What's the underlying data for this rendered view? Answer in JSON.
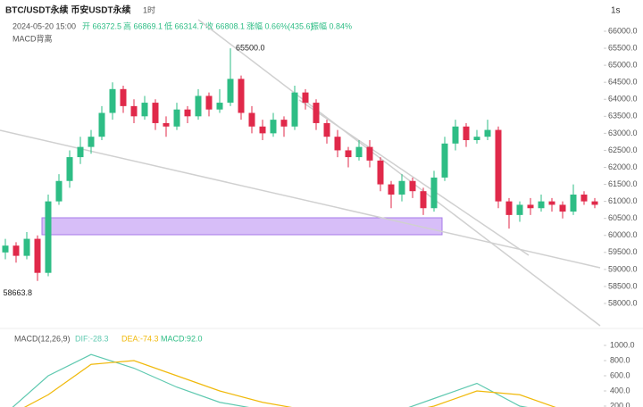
{
  "header": {
    "symbol": "BTC/USDT永续 币安USDT永续",
    "interval": "1时",
    "refresh": "1s"
  },
  "info": {
    "time": "2024-05-20 15:00",
    "open": "开 66372.5",
    "high": "高 66869.1",
    "low": "低 66314.7",
    "close": "收 66808.1",
    "change": "涨幅 0.66%(435.6)",
    "amplitude": "振幅 0.84%"
  },
  "indicator": "MACD背离",
  "chart_data": [
    {
      "type": "candlestick",
      "up_color": "#2ebd85",
      "down_color": "#e0294a",
      "ylim": [
        58000,
        66000
      ],
      "yticks": [
        {
          "value": 66000,
          "label": "66000.0"
        },
        {
          "value": 65500,
          "label": "65500.0"
        },
        {
          "value": 65000,
          "label": "65000.0"
        },
        {
          "value": 64500,
          "label": "64500.0"
        },
        {
          "value": 64000,
          "label": "64000.0"
        },
        {
          "value": 63500,
          "label": "63500.0"
        },
        {
          "value": 63000,
          "label": "63000.0"
        },
        {
          "value": 62500,
          "label": "62500.0"
        },
        {
          "value": 62000,
          "label": "62000.0"
        },
        {
          "value": 61500,
          "label": "61500.0"
        },
        {
          "value": 61000,
          "label": "61000.0"
        },
        {
          "value": 60500,
          "label": "60500.0"
        },
        {
          "value": 60000,
          "label": "60000.0"
        },
        {
          "value": 59500,
          "label": "59500.0"
        },
        {
          "value": 59000,
          "label": "59000.0"
        },
        {
          "value": 58500,
          "label": "58500.0"
        },
        {
          "value": 58000,
          "label": "58000.0"
        }
      ],
      "annotations": {
        "high": "65500.0",
        "low": "58663.8"
      },
      "ohlc": [
        [
          59500,
          59900,
          59300,
          59700
        ],
        [
          59700,
          59800,
          59200,
          59400
        ],
        [
          59400,
          60100,
          59300,
          59900
        ],
        [
          59900,
          60000,
          58663.8,
          58900
        ],
        [
          58900,
          61200,
          58800,
          61000
        ],
        [
          61000,
          61800,
          60900,
          61600
        ],
        [
          61600,
          62500,
          61400,
          62300
        ],
        [
          62300,
          62900,
          62100,
          62600
        ],
        [
          62600,
          63100,
          62400,
          62900
        ],
        [
          62900,
          63800,
          62800,
          63600
        ],
        [
          63600,
          64500,
          63400,
          64300
        ],
        [
          64300,
          64400,
          63600,
          63800
        ],
        [
          63800,
          64000,
          63300,
          63500
        ],
        [
          63500,
          64100,
          63400,
          63900
        ],
        [
          63900,
          64000,
          63100,
          63300
        ],
        [
          63300,
          63500,
          62900,
          63200
        ],
        [
          63200,
          63900,
          63100,
          63700
        ],
        [
          63700,
          63800,
          63300,
          63500
        ],
        [
          63500,
          64300,
          63400,
          64100
        ],
        [
          64100,
          64200,
          63500,
          63700
        ],
        [
          63700,
          64300,
          63600,
          63900
        ],
        [
          63900,
          65500,
          63800,
          64600
        ],
        [
          64600,
          64700,
          63400,
          63600
        ],
        [
          63600,
          63800,
          63000,
          63200
        ],
        [
          63200,
          63400,
          62800,
          63000
        ],
        [
          63000,
          63600,
          62900,
          63400
        ],
        [
          63400,
          63500,
          62900,
          63200
        ],
        [
          63200,
          64400,
          63100,
          64200
        ],
        [
          64200,
          64300,
          63700,
          63900
        ],
        [
          63900,
          64000,
          63100,
          63300
        ],
        [
          63300,
          63400,
          62700,
          62900
        ],
        [
          62900,
          63100,
          62300,
          62500
        ],
        [
          62500,
          62600,
          62000,
          62300
        ],
        [
          62300,
          62800,
          62200,
          62600
        ],
        [
          62600,
          62800,
          62000,
          62200
        ],
        [
          62200,
          62300,
          61300,
          61500
        ],
        [
          61500,
          61600,
          60800,
          61200
        ],
        [
          61200,
          61800,
          61000,
          61600
        ],
        [
          61600,
          61700,
          61100,
          61300
        ],
        [
          61300,
          61400,
          60600,
          60800
        ],
        [
          60800,
          61900,
          60700,
          61700
        ],
        [
          61700,
          62900,
          61600,
          62700
        ],
        [
          62700,
          63400,
          62500,
          63200
        ],
        [
          63200,
          63300,
          62600,
          62800
        ],
        [
          62800,
          63100,
          62700,
          62900
        ],
        [
          62900,
          63400,
          62800,
          63100
        ],
        [
          63100,
          63200,
          60800,
          61000
        ],
        [
          61000,
          61100,
          60200,
          60600
        ],
        [
          60600,
          61000,
          60400,
          60900
        ],
        [
          60900,
          61100,
          60600,
          60800
        ],
        [
          60800,
          61200,
          60700,
          61000
        ],
        [
          61000,
          61100,
          60700,
          60900
        ],
        [
          60900,
          61000,
          60500,
          60700
        ],
        [
          60700,
          61500,
          60600,
          61200
        ],
        [
          61200,
          61300,
          60900,
          61000
        ],
        [
          61000,
          61100,
          60800,
          60900
        ]
      ]
    },
    {
      "type": "line",
      "title": "MACD(12,26,9)",
      "legend": [
        "DIF:-28.3",
        "DEA:-74.3",
        "MACD:92.0"
      ],
      "ylim": [
        200,
        1000
      ],
      "yticks": [
        {
          "value": 1000,
          "label": "1000.0"
        },
        {
          "value": 800,
          "label": "800.0"
        },
        {
          "value": 600,
          "label": "600.0"
        },
        {
          "value": 400,
          "label": "400.0"
        },
        {
          "value": 200,
          "label": "200.0"
        }
      ],
      "x": [
        0,
        4,
        8,
        12,
        16,
        20,
        24,
        28,
        32,
        36,
        40,
        44,
        48,
        52
      ],
      "series": [
        {
          "color": "#5fc9b0",
          "values": [
            100,
            600,
            880,
            700,
            450,
            250,
            150,
            100,
            50,
            100,
            300,
            500,
            200,
            100
          ]
        },
        {
          "color": "#f0b90b",
          "values": [
            50,
            350,
            750,
            800,
            600,
            400,
            250,
            150,
            100,
            80,
            200,
            400,
            350,
            150
          ]
        }
      ]
    }
  ]
}
